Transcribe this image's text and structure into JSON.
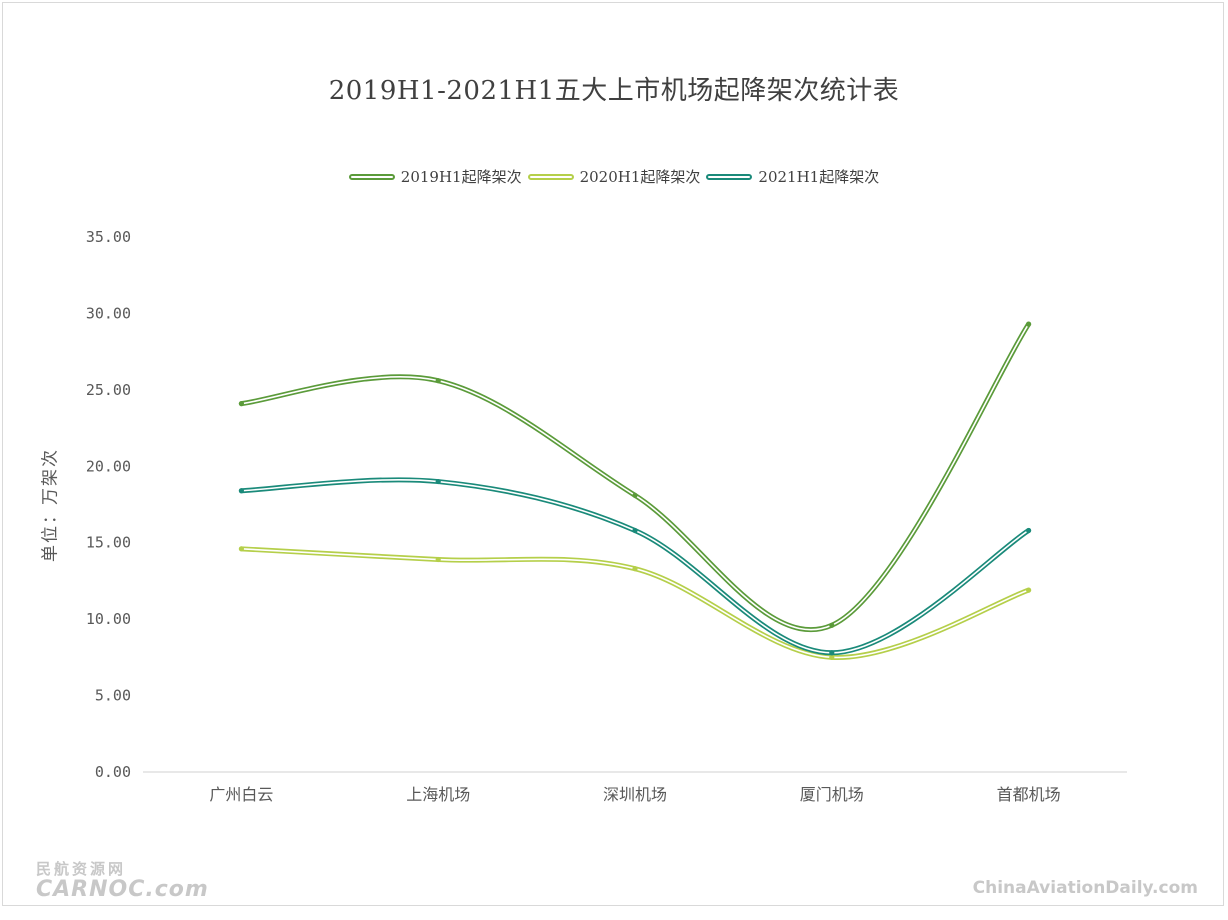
{
  "chart_data": {
    "type": "line",
    "title": "2019H1-2021H1五大上市机场起降架次统计表",
    "ylabel": "单位：万架次",
    "xlabel": "",
    "categories": [
      "广州白云",
      "上海机场",
      "深圳机场",
      "厦门机场",
      "首都机场"
    ],
    "series": [
      {
        "name": "2019H1起降架次",
        "values": [
          24.1,
          25.6,
          18.1,
          9.6,
          29.3
        ],
        "color": "#5b9b3a"
      },
      {
        "name": "2020H1起降架次",
        "values": [
          14.6,
          13.9,
          13.3,
          7.5,
          11.9
        ],
        "color": "#b5cf4a"
      },
      {
        "name": "2021H1起降架次",
        "values": [
          18.4,
          19.0,
          15.8,
          7.8,
          15.8
        ],
        "color": "#1a8a7a"
      }
    ],
    "ylim": [
      0,
      35
    ],
    "yticks": [
      "0.00",
      "5.00",
      "10.00",
      "15.00",
      "20.00",
      "25.00",
      "30.00",
      "35.00"
    ],
    "smooth": true,
    "grid": false,
    "legend_position": "top"
  },
  "watermark": {
    "left_line1": "民航资源网",
    "left_line2": "CARNOC.com",
    "right": "ChinaAviationDaily.com"
  }
}
